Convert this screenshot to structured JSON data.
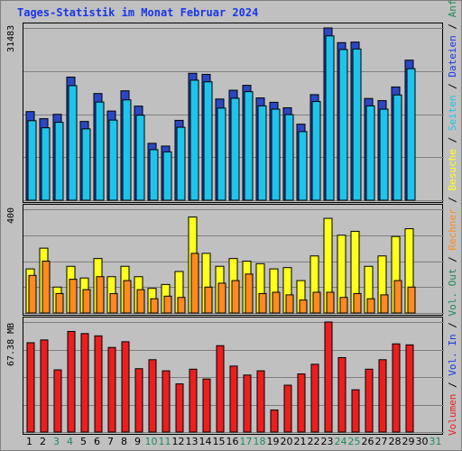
{
  "title": "Tages-Statistik im Monat Februar 2024",
  "chart_data": [
    {
      "type": "bar",
      "title": "Tages-Statistik im Monat Februar 2024",
      "ylabel_max": "31483",
      "ylim": [
        0,
        31483
      ],
      "categories": [
        "1",
        "2",
        "3",
        "4",
        "5",
        "6",
        "7",
        "8",
        "9",
        "10",
        "11",
        "12",
        "13",
        "14",
        "15",
        "16",
        "17",
        "18",
        "19",
        "20",
        "21",
        "22",
        "23",
        "24",
        "25",
        "26",
        "27",
        "28",
        "29",
        "30",
        "31"
      ],
      "series": [
        {
          "name": "Anfragen",
          "color": "#2a47c4",
          "values": [
            16200,
            14900,
            15700,
            22500,
            14400,
            19500,
            16300,
            20000,
            17200,
            10400,
            9900,
            14600,
            23200,
            23000,
            18500,
            20100,
            21000,
            18700,
            17900,
            16900,
            13900,
            19300,
            31483,
            28800,
            28900,
            18600,
            18200,
            20700,
            25600,
            0,
            0
          ]
        },
        {
          "name": "Dateien",
          "color": "#1ec4ec",
          "values": [
            15200,
            13900,
            14900,
            21600,
            13700,
            18600,
            15300,
            19000,
            16200,
            9900,
            9500,
            14000,
            22600,
            22300,
            17500,
            19300,
            20500,
            17900,
            17300,
            16300,
            13200,
            18700,
            30700,
            28200,
            28300,
            17900,
            17300,
            19900,
            24700,
            0,
            0
          ]
        }
      ]
    },
    {
      "type": "bar",
      "ylabel_max": "400",
      "ylim": [
        0,
        400
      ],
      "categories": [
        "1",
        "2",
        "3",
        "4",
        "5",
        "6",
        "7",
        "8",
        "9",
        "10",
        "11",
        "12",
        "13",
        "14",
        "15",
        "16",
        "17",
        "18",
        "19",
        "20",
        "21",
        "22",
        "23",
        "24",
        "25",
        "26",
        "27",
        "28",
        "29",
        "30",
        "31"
      ],
      "series": [
        {
          "name": "Besuche",
          "color": "#ffff1e",
          "values": [
            170,
            250,
            100,
            180,
            135,
            210,
            140,
            180,
            140,
            95,
            110,
            160,
            370,
            230,
            180,
            210,
            200,
            190,
            170,
            175,
            125,
            220,
            365,
            300,
            315,
            180,
            220,
            295,
            325,
            0,
            0
          ]
        },
        {
          "name": "Rechner",
          "color": "#ff8a1e",
          "values": [
            145,
            200,
            75,
            130,
            90,
            140,
            75,
            125,
            90,
            55,
            65,
            60,
            230,
            100,
            115,
            125,
            150,
            75,
            80,
            70,
            50,
            80,
            80,
            60,
            75,
            55,
            70,
            125,
            100,
            0,
            0
          ]
        }
      ]
    },
    {
      "type": "bar",
      "ylabel_max": "67.38 MB",
      "ylim": [
        0,
        67.38
      ],
      "categories": [
        "1",
        "2",
        "3",
        "4",
        "5",
        "6",
        "7",
        "8",
        "9",
        "10",
        "11",
        "12",
        "13",
        "14",
        "15",
        "16",
        "17",
        "18",
        "19",
        "20",
        "21",
        "22",
        "23",
        "24",
        "25",
        "26",
        "27",
        "28",
        "29",
        "30",
        "31"
      ],
      "series": [
        {
          "name": "Volumen",
          "color": "#ec1e1e",
          "values": [
            54.7,
            56.4,
            38.1,
            61.6,
            60.3,
            58.9,
            51.8,
            55.3,
            38.8,
            44.3,
            37.5,
            29.5,
            38.5,
            32.5,
            52.9,
            40.4,
            34.9,
            37.5,
            13.5,
            28.7,
            35.6,
            41.5,
            67.38,
            45.6,
            25.9,
            38.5,
            44.3,
            54.0,
            53.4,
            0,
            0
          ]
        }
      ]
    }
  ],
  "legend": [
    {
      "label": "Volumen",
      "color": "#ec1e1e"
    },
    {
      "label": "/",
      "color": "#000000"
    },
    {
      "label": "Vol. In",
      "color": "#1a36e6"
    },
    {
      "label": "/",
      "color": "#000000"
    },
    {
      "label": "Vol. Out",
      "color": "#1e8a5a"
    },
    {
      "label": "/",
      "color": "#000000"
    },
    {
      "label": "Rechner",
      "color": "#ff8a1e"
    },
    {
      "label": "/",
      "color": "#000000"
    },
    {
      "label": "Besuche",
      "color": "#ffff1e"
    },
    {
      "label": "/",
      "color": "#000000"
    },
    {
      "label": "Seiten",
      "color": "#1ec4ec"
    },
    {
      "label": "/",
      "color": "#000000"
    },
    {
      "label": "Dateien",
      "color": "#1a36e6"
    },
    {
      "label": "/",
      "color": "#000000"
    },
    {
      "label": "Anfragen",
      "color": "#1e8a5a"
    }
  ],
  "weekend_days": [
    "3",
    "4",
    "10",
    "11",
    "17",
    "18",
    "24",
    "25",
    "31"
  ],
  "colors": {
    "weekday": "#000000",
    "weekend": "#1e8a5a",
    "grid": "#808080",
    "background": "#c0c0c0"
  }
}
